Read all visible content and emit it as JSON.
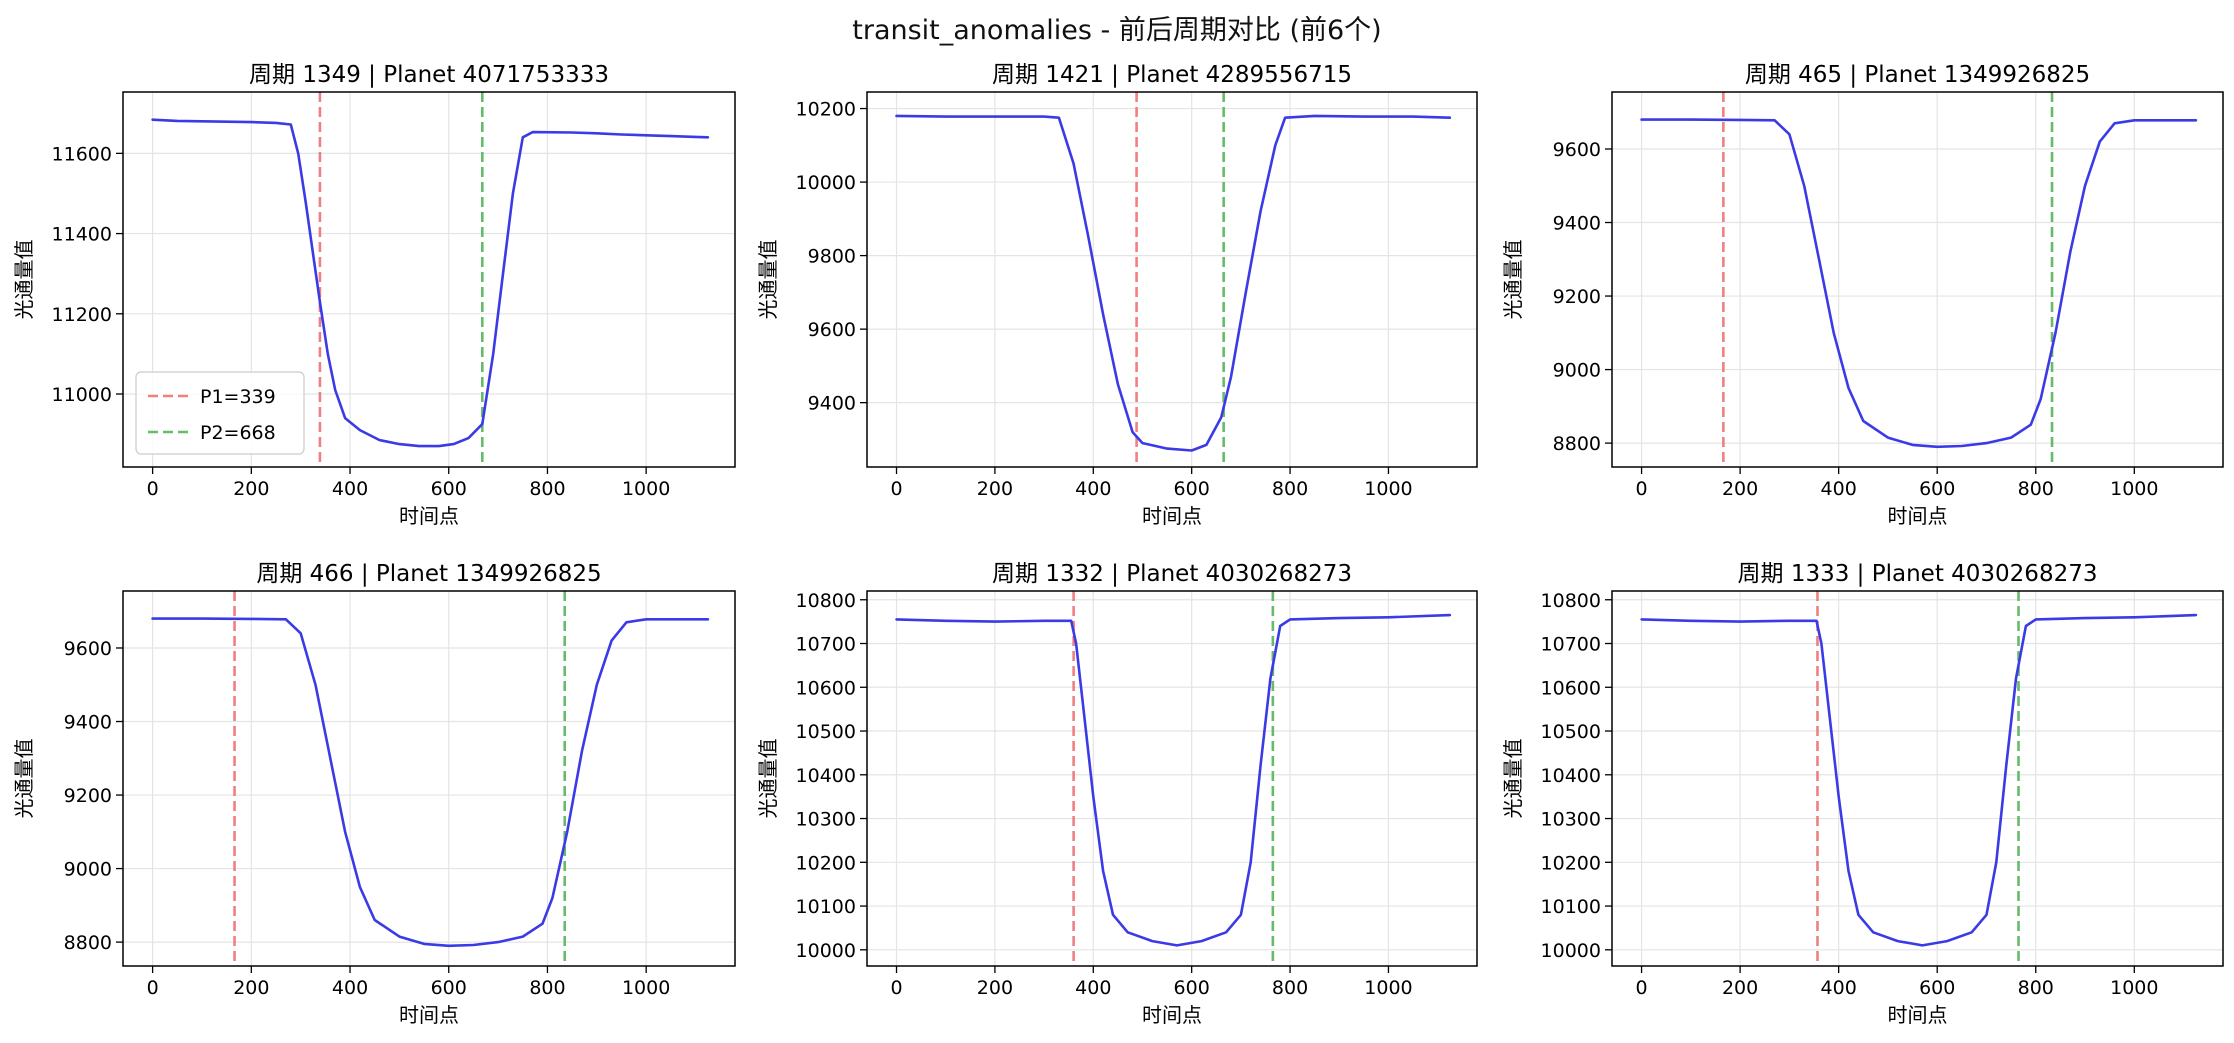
{
  "figure": {
    "title": "transit_anomalies - 前后周期对比 (前6个)"
  },
  "chart_data": [
    {
      "type": "line",
      "title": "周期 1349 | Planet 4071753333",
      "xlabel": "时间点",
      "ylabel": "光通量值",
      "xlim": [
        -60,
        1180
      ],
      "ylim": [
        10818,
        11753
      ],
      "xticks": [
        0,
        200,
        400,
        600,
        800,
        1000
      ],
      "yticks": [
        11000,
        11200,
        11400,
        11600
      ],
      "grid": true,
      "legend": "lower-left",
      "series": [
        {
          "name": "",
          "color": "#3a3ae6",
          "points": [
            [
              0,
              11684
            ],
            [
              50,
              11681
            ],
            [
              100,
              11680
            ],
            [
              150,
              11679
            ],
            [
              200,
              11678
            ],
            [
              250,
              11676
            ],
            [
              280,
              11672
            ],
            [
              295,
              11600
            ],
            [
              310,
              11480
            ],
            [
              325,
              11350
            ],
            [
              339,
              11230
            ],
            [
              355,
              11100
            ],
            [
              370,
              11010
            ],
            [
              390,
              10940
            ],
            [
              420,
              10910
            ],
            [
              460,
              10885
            ],
            [
              500,
              10875
            ],
            [
              540,
              10870
            ],
            [
              580,
              10870
            ],
            [
              610,
              10875
            ],
            [
              640,
              10890
            ],
            [
              668,
              10925
            ],
            [
              690,
              11100
            ],
            [
              710,
              11300
            ],
            [
              730,
              11500
            ],
            [
              750,
              11640
            ],
            [
              770,
              11653
            ],
            [
              850,
              11652
            ],
            [
              900,
              11650
            ],
            [
              950,
              11647
            ],
            [
              1000,
              11645
            ],
            [
              1050,
              11643
            ],
            [
              1100,
              11641
            ],
            [
              1125,
              11640
            ]
          ]
        }
      ],
      "markers": [
        {
          "x": 339,
          "label": "P1=339",
          "color": "#f08080"
        },
        {
          "x": 668,
          "label": "P2=668",
          "color": "#66bb6a"
        }
      ]
    },
    {
      "type": "line",
      "title": "周期 1421 | Planet 4289556715",
      "xlabel": "时间点",
      "ylabel": "光通量值",
      "xlim": [
        -60,
        1180
      ],
      "ylim": [
        9225,
        10245
      ],
      "xticks": [
        0,
        200,
        400,
        600,
        800,
        1000
      ],
      "yticks": [
        9400,
        9600,
        9800,
        10000,
        10200
      ],
      "grid": true,
      "legend": "none",
      "series": [
        {
          "name": "",
          "color": "#3a3ae6",
          "points": [
            [
              0,
              10180
            ],
            [
              100,
              10178
            ],
            [
              200,
              10178
            ],
            [
              300,
              10178
            ],
            [
              330,
              10175
            ],
            [
              360,
              10050
            ],
            [
              390,
              9850
            ],
            [
              420,
              9640
            ],
            [
              450,
              9450
            ],
            [
              480,
              9320
            ],
            [
              500,
              9290
            ],
            [
              550,
              9275
            ],
            [
              600,
              9270
            ],
            [
              630,
              9285
            ],
            [
              660,
              9360
            ],
            [
              680,
              9470
            ],
            [
              710,
              9700
            ],
            [
              740,
              9920
            ],
            [
              770,
              10100
            ],
            [
              790,
              10175
            ],
            [
              850,
              10180
            ],
            [
              950,
              10178
            ],
            [
              1050,
              10178
            ],
            [
              1125,
              10175
            ]
          ]
        }
      ],
      "markers": [
        {
          "x": 488,
          "label": "",
          "color": "#f08080"
        },
        {
          "x": 665,
          "label": "",
          "color": "#66bb6a"
        }
      ]
    },
    {
      "type": "line",
      "title": "周期 465 | Planet 1349926825",
      "xlabel": "时间点",
      "ylabel": "光通量值",
      "xlim": [
        -60,
        1180
      ],
      "ylim": [
        8735,
        9755
      ],
      "xticks": [
        0,
        200,
        400,
        600,
        800,
        1000
      ],
      "yticks": [
        8800,
        9000,
        9200,
        9400,
        9600,
        9800
      ],
      "grid": true,
      "legend": "none",
      "series": [
        {
          "name": "",
          "color": "#3a3ae6",
          "points": [
            [
              0,
              9680
            ],
            [
              100,
              9680
            ],
            [
              200,
              9679
            ],
            [
              270,
              9678
            ],
            [
              300,
              9640
            ],
            [
              330,
              9500
            ],
            [
              360,
              9300
            ],
            [
              390,
              9100
            ],
            [
              420,
              8950
            ],
            [
              450,
              8860
            ],
            [
              500,
              8815
            ],
            [
              550,
              8795
            ],
            [
              600,
              8790
            ],
            [
              650,
              8792
            ],
            [
              700,
              8800
            ],
            [
              750,
              8815
            ],
            [
              790,
              8850
            ],
            [
              810,
              8920
            ],
            [
              840,
              9100
            ],
            [
              870,
              9320
            ],
            [
              900,
              9500
            ],
            [
              930,
              9620
            ],
            [
              960,
              9670
            ],
            [
              1000,
              9678
            ],
            [
              1060,
              9678
            ],
            [
              1125,
              9678
            ]
          ]
        }
      ],
      "markers": [
        {
          "x": 166,
          "label": "",
          "color": "#f08080"
        },
        {
          "x": 833,
          "label": "",
          "color": "#66bb6a"
        }
      ]
    },
    {
      "type": "line",
      "title": "周期 466 | Planet 1349926825",
      "xlabel": "时间点",
      "ylabel": "光通量值",
      "xlim": [
        -60,
        1180
      ],
      "ylim": [
        8735,
        9755
      ],
      "xticks": [
        0,
        200,
        400,
        600,
        800,
        1000
      ],
      "yticks": [
        8800,
        9000,
        9200,
        9400,
        9600
      ],
      "grid": true,
      "legend": "none",
      "series": [
        {
          "name": "",
          "color": "#3a3ae6",
          "points": [
            [
              0,
              9680
            ],
            [
              100,
              9680
            ],
            [
              200,
              9679
            ],
            [
              270,
              9678
            ],
            [
              300,
              9640
            ],
            [
              330,
              9500
            ],
            [
              360,
              9300
            ],
            [
              390,
              9100
            ],
            [
              420,
              8950
            ],
            [
              450,
              8860
            ],
            [
              500,
              8815
            ],
            [
              550,
              8795
            ],
            [
              600,
              8790
            ],
            [
              650,
              8792
            ],
            [
              700,
              8800
            ],
            [
              750,
              8815
            ],
            [
              790,
              8850
            ],
            [
              810,
              8920
            ],
            [
              840,
              9100
            ],
            [
              870,
              9320
            ],
            [
              900,
              9500
            ],
            [
              930,
              9620
            ],
            [
              960,
              9670
            ],
            [
              1000,
              9678
            ],
            [
              1060,
              9678
            ],
            [
              1125,
              9678
            ]
          ]
        }
      ],
      "markers": [
        {
          "x": 166,
          "label": "",
          "color": "#f08080"
        },
        {
          "x": 835,
          "label": "",
          "color": "#66bb6a"
        }
      ]
    },
    {
      "type": "line",
      "title": "周期 1332 | Planet 4030268273",
      "xlabel": "时间点",
      "ylabel": "光通量值",
      "xlim": [
        -60,
        1180
      ],
      "ylim": [
        9963,
        10820
      ],
      "xticks": [
        0,
        200,
        400,
        600,
        800,
        1000
      ],
      "yticks": [
        10000,
        10100,
        10200,
        10300,
        10400,
        10500,
        10600,
        10700,
        10800
      ],
      "grid": true,
      "legend": "none",
      "series": [
        {
          "name": "",
          "color": "#3a3ae6",
          "points": [
            [
              0,
              10755
            ],
            [
              100,
              10752
            ],
            [
              200,
              10750
            ],
            [
              300,
              10752
            ],
            [
              355,
              10752
            ],
            [
              365,
              10700
            ],
            [
              380,
              10550
            ],
            [
              400,
              10350
            ],
            [
              420,
              10180
            ],
            [
              440,
              10080
            ],
            [
              470,
              10040
            ],
            [
              520,
              10020
            ],
            [
              570,
              10010
            ],
            [
              620,
              10020
            ],
            [
              670,
              10040
            ],
            [
              700,
              10080
            ],
            [
              720,
              10200
            ],
            [
              740,
              10420
            ],
            [
              760,
              10620
            ],
            [
              780,
              10740
            ],
            [
              800,
              10755
            ],
            [
              900,
              10758
            ],
            [
              1000,
              10760
            ],
            [
              1125,
              10765
            ]
          ]
        }
      ],
      "markers": [
        {
          "x": 360,
          "label": "",
          "color": "#f08080"
        },
        {
          "x": 765,
          "label": "",
          "color": "#66bb6a"
        }
      ]
    },
    {
      "type": "line",
      "title": "周期 1333 | Planet 4030268273",
      "xlabel": "时间点",
      "ylabel": "光通量值",
      "xlim": [
        -60,
        1180
      ],
      "ylim": [
        9963,
        10820
      ],
      "xticks": [
        0,
        200,
        400,
        600,
        800,
        1000
      ],
      "yticks": [
        10000,
        10100,
        10200,
        10300,
        10400,
        10500,
        10600,
        10700,
        10800
      ],
      "grid": true,
      "legend": "none",
      "series": [
        {
          "name": "",
          "color": "#3a3ae6",
          "points": [
            [
              0,
              10755
            ],
            [
              100,
              10752
            ],
            [
              200,
              10750
            ],
            [
              300,
              10752
            ],
            [
              355,
              10752
            ],
            [
              365,
              10700
            ],
            [
              380,
              10550
            ],
            [
              400,
              10350
            ],
            [
              420,
              10180
            ],
            [
              440,
              10080
            ],
            [
              470,
              10040
            ],
            [
              520,
              10020
            ],
            [
              570,
              10010
            ],
            [
              620,
              10020
            ],
            [
              670,
              10040
            ],
            [
              700,
              10080
            ],
            [
              720,
              10200
            ],
            [
              740,
              10420
            ],
            [
              760,
              10620
            ],
            [
              780,
              10740
            ],
            [
              800,
              10755
            ],
            [
              900,
              10758
            ],
            [
              1000,
              10760
            ],
            [
              1125,
              10765
            ]
          ]
        }
      ],
      "markers": [
        {
          "x": 357,
          "label": "",
          "color": "#f08080"
        },
        {
          "x": 765,
          "label": "",
          "color": "#66bb6a"
        }
      ]
    }
  ]
}
